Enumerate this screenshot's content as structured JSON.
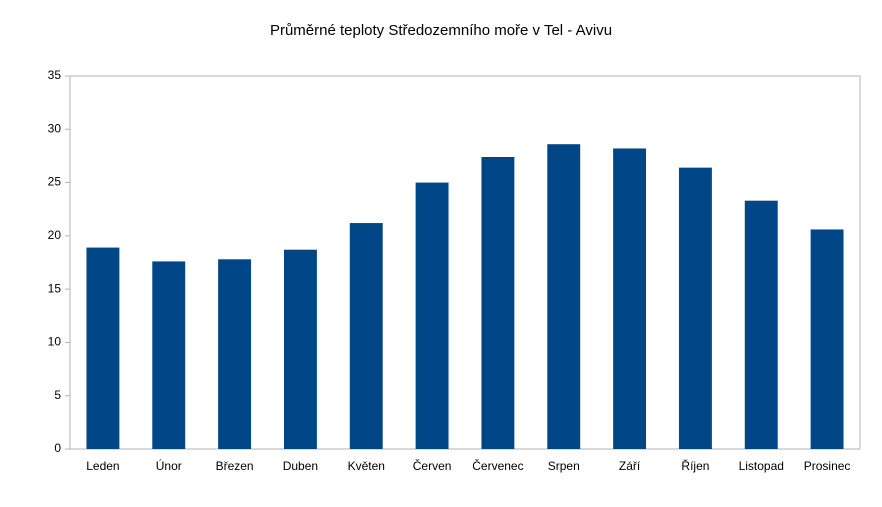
{
  "chart_data": {
    "type": "bar",
    "title": "Průměrné teploty Středozemního moře v Tel - Avivu",
    "categories": [
      "Leden",
      "Únor",
      "Březen",
      "Duben",
      "Květen",
      "Červen",
      "Červenec",
      "Srpen",
      "Září",
      "Říjen",
      "Listopad",
      "Prosinec"
    ],
    "values": [
      18.9,
      17.6,
      17.8,
      18.7,
      21.2,
      25.0,
      27.4,
      28.6,
      28.2,
      26.4,
      23.3,
      20.6
    ],
    "color": "#004586",
    "ylim": [
      0,
      35
    ],
    "yticks": [
      0,
      5,
      10,
      15,
      20,
      25,
      30,
      35
    ],
    "grid": false
  }
}
